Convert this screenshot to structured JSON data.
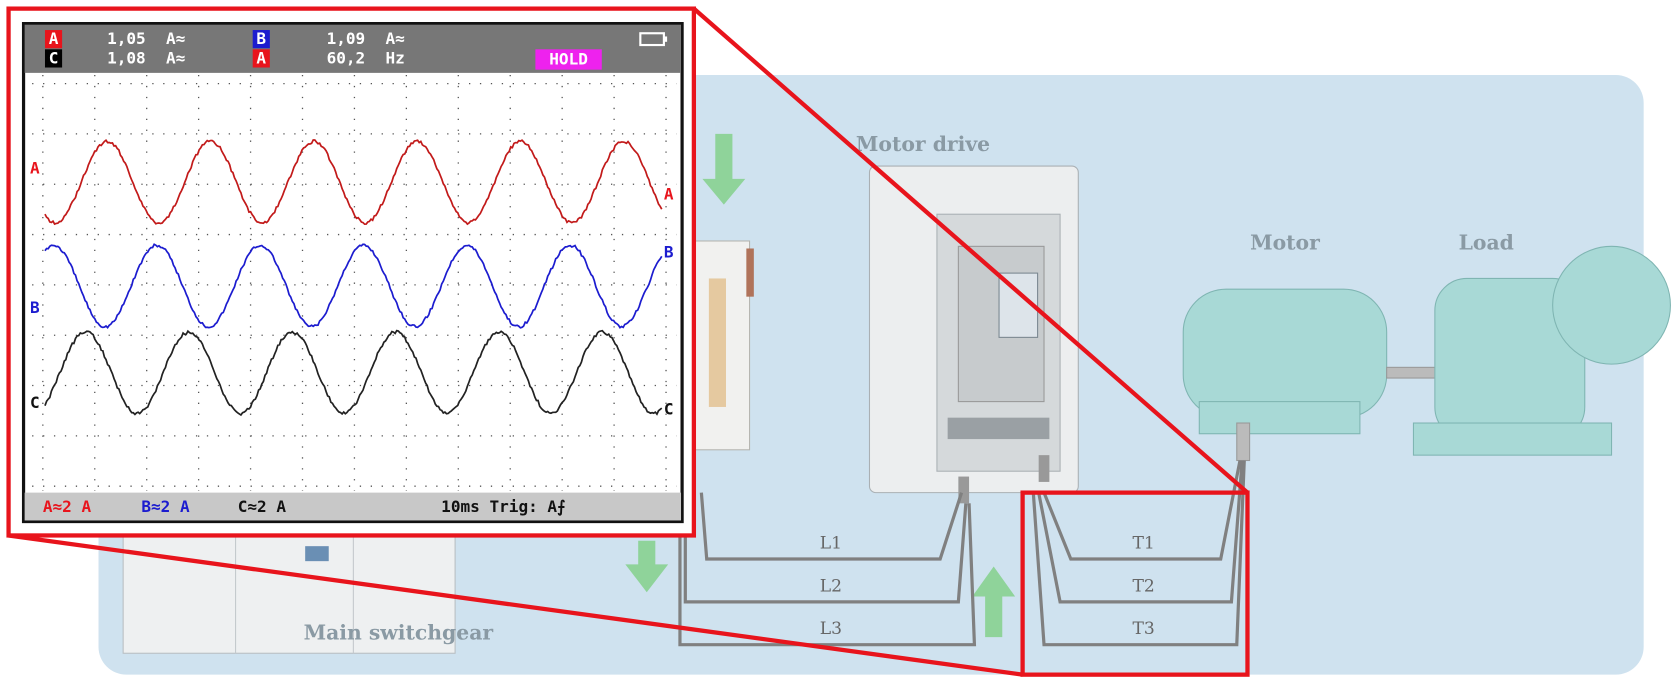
{
  "scope": {
    "readings": [
      {
        "channel": "A",
        "value": "1,05",
        "unit": "A≈"
      },
      {
        "channel": "C",
        "value": "1,08",
        "unit": "A≈"
      },
      {
        "channel": "B",
        "value": "1,09",
        "unit": "A≈"
      },
      {
        "channel": "A",
        "value": "60,2",
        "unit": "Hz"
      }
    ],
    "hold": "HOLD",
    "traces": [
      "A",
      "B",
      "C"
    ],
    "footer": {
      "scales": [
        "A≈2 A",
        "B≈2 A",
        "C≈2 A"
      ],
      "timebase": "10ms Trig: A⨍"
    }
  },
  "diagram": {
    "motor_drive": "Motor drive",
    "motor": "Motor",
    "load": "Load",
    "switchgear": "Main switchgear",
    "lines": [
      "L1",
      "L2",
      "L3"
    ],
    "terminals": [
      "T1",
      "T2",
      "T3"
    ]
  }
}
